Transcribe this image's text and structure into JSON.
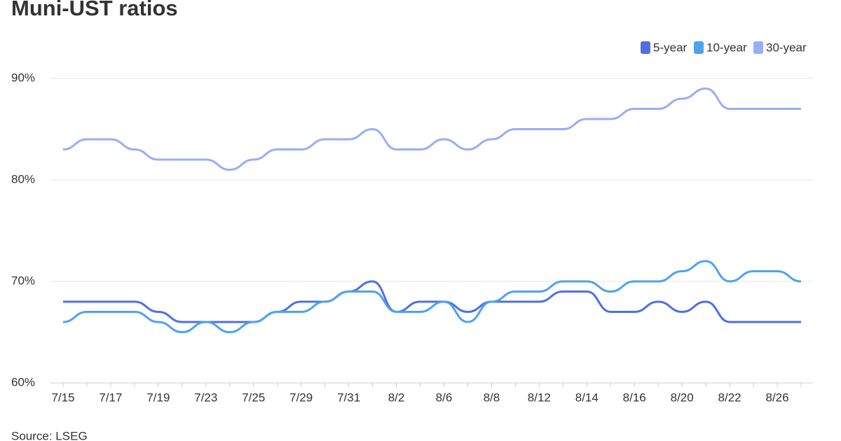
{
  "chart_data": {
    "type": "line",
    "title": "Muni-UST ratios",
    "source": "Source: LSEG",
    "categories": [
      "7/15",
      null,
      "7/17",
      null,
      "7/19",
      null,
      "7/23",
      null,
      "7/25",
      null,
      "7/29",
      null,
      "7/31",
      null,
      "8/2",
      null,
      "8/6",
      null,
      "8/8",
      null,
      "8/12",
      null,
      "8/14",
      null,
      "8/16",
      null,
      "8/20",
      null,
      "8/22",
      null,
      "8/26",
      null
    ],
    "series": [
      {
        "name": "5-year",
        "color": "#4f6fe3",
        "values": [
          68,
          68,
          68,
          68,
          67,
          66,
          66,
          66,
          66,
          67,
          68,
          68,
          69,
          70,
          67,
          68,
          68,
          67,
          68,
          68,
          68,
          69,
          69,
          67,
          67,
          68,
          67,
          68,
          66,
          66,
          66,
          66
        ]
      },
      {
        "name": "10-year",
        "color": "#4ea2ef",
        "values": [
          66,
          67,
          67,
          67,
          66,
          65,
          66,
          65,
          66,
          67,
          67,
          68,
          69,
          69,
          67,
          67,
          68,
          66,
          68,
          69,
          69,
          70,
          70,
          69,
          70,
          70,
          71,
          72,
          70,
          71,
          71,
          70
        ]
      },
      {
        "name": "30-year",
        "color": "#98aef5",
        "values": [
          83,
          84,
          84,
          83,
          82,
          82,
          82,
          81,
          82,
          83,
          83,
          84,
          84,
          85,
          83,
          83,
          84,
          83,
          84,
          85,
          85,
          85,
          86,
          86,
          87,
          87,
          88,
          89,
          87,
          87,
          87,
          87
        ]
      }
    ],
    "ylim": [
      60,
      90
    ],
    "yticks": [
      {
        "value": 60,
        "label": "60%"
      },
      {
        "value": 70,
        "label": "70%"
      },
      {
        "value": 80,
        "label": "80%"
      },
      {
        "value": 90,
        "label": "90%"
      }
    ],
    "grid": true,
    "legend": "top-right"
  }
}
